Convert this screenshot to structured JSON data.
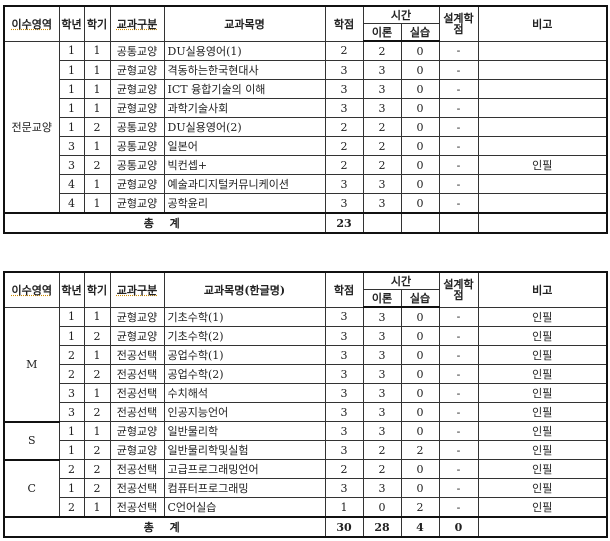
{
  "headers": {
    "area": "이수영역",
    "year": "학년",
    "sem": "학기",
    "type": "교과구분",
    "course1": "교과목명",
    "course2": "교과목명(한글명)",
    "credit": "학점",
    "time": "시간",
    "theory": "이론",
    "practice": "실습",
    "design": "설계학점",
    "note": "비고"
  },
  "table1": {
    "groups": [
      {
        "area": "전문교양",
        "rows": [
          [
            "1",
            "1",
            "공통교양",
            "DU실용영어(1)",
            "2",
            "2",
            "0",
            "-",
            ""
          ],
          [
            "1",
            "1",
            "균형교양",
            "격동하는한국현대사",
            "3",
            "3",
            "0",
            "-",
            ""
          ],
          [
            "1",
            "1",
            "균형교양",
            "ICT 융합기술의 이해",
            "3",
            "3",
            "0",
            "-",
            ""
          ],
          [
            "1",
            "1",
            "균형교양",
            "과학기술사회",
            "3",
            "3",
            "0",
            "-",
            ""
          ],
          [
            "1",
            "2",
            "공통교양",
            "DU실용영어(2)",
            "2",
            "2",
            "0",
            "-",
            ""
          ],
          [
            "3",
            "1",
            "공통교양",
            "일본어",
            "2",
            "2",
            "0",
            "-",
            ""
          ],
          [
            "3",
            "2",
            "공통교양",
            "빅컨셉+",
            "2",
            "2",
            "0",
            "-",
            "인필"
          ],
          [
            "4",
            "1",
            "균형교양",
            "예술과디지털커뮤니케이션",
            "3",
            "3",
            "0",
            "-",
            ""
          ],
          [
            "4",
            "1",
            "균형교양",
            "공학윤리",
            "3",
            "3",
            "0",
            "-",
            ""
          ]
        ]
      }
    ],
    "total": {
      "label": "총 계",
      "credit": "23",
      "theory": "",
      "practice": "",
      "design": "",
      "note": ""
    }
  },
  "table2": {
    "groups": [
      {
        "area": "M",
        "rows": [
          [
            "1",
            "1",
            "균형교양",
            "기초수학(1)",
            "3",
            "3",
            "0",
            "-",
            "인필"
          ],
          [
            "1",
            "2",
            "균형교양",
            "기초수학(2)",
            "3",
            "3",
            "0",
            "-",
            "인필"
          ],
          [
            "2",
            "1",
            "전공선택",
            "공업수학(1)",
            "3",
            "3",
            "0",
            "-",
            "인필"
          ],
          [
            "2",
            "2",
            "전공선택",
            "공업수학(2)",
            "3",
            "3",
            "0",
            "-",
            "인필"
          ],
          [
            "3",
            "1",
            "전공선택",
            "수치해석",
            "3",
            "3",
            "0",
            "-",
            "인필"
          ],
          [
            "3",
            "2",
            "전공선택",
            "인공지능언어",
            "3",
            "3",
            "0",
            "-",
            "인필"
          ]
        ]
      },
      {
        "area": "S",
        "rows": [
          [
            "1",
            "1",
            "균형교양",
            "일반물리학",
            "3",
            "3",
            "0",
            "-",
            "인필"
          ],
          [
            "1",
            "2",
            "균형교양",
            "일반물리학및실험",
            "3",
            "2",
            "2",
            "-",
            "인필"
          ]
        ]
      },
      {
        "area": "C",
        "rows": [
          [
            "2",
            "2",
            "전공선택",
            "고급프로그래밍언어",
            "2",
            "2",
            "0",
            "-",
            "인필"
          ],
          [
            "1",
            "2",
            "전공선택",
            "컴퓨터프로그래밍",
            "3",
            "3",
            "0",
            "-",
            "인필"
          ],
          [
            "2",
            "1",
            "전공선택",
            "C언어실습",
            "1",
            "0",
            "2",
            "-",
            "인필"
          ]
        ]
      }
    ],
    "total": {
      "label": "총 계",
      "credit": "30",
      "theory": "28",
      "practice": "4",
      "design": "0",
      "note": ""
    }
  }
}
